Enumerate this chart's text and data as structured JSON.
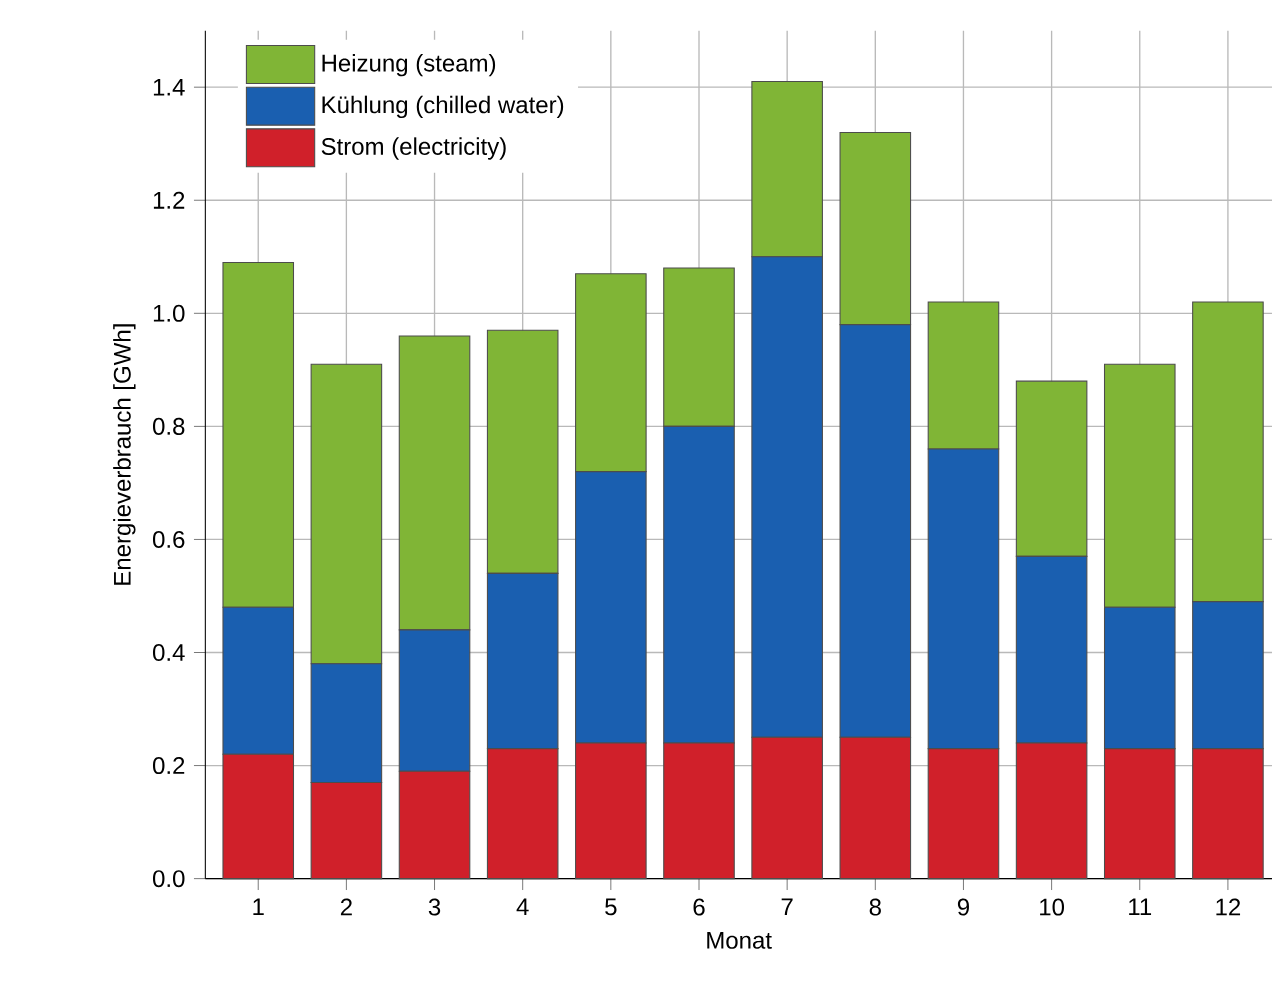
{
  "chart_data": {
    "type": "bar",
    "stacked": true,
    "xlabel": "Monat",
    "ylabel": "Energieverbrauch [GWh]",
    "categories": [
      "1",
      "2",
      "3",
      "4",
      "5",
      "6",
      "7",
      "8",
      "9",
      "10",
      "11",
      "12"
    ],
    "series": [
      {
        "name": "Strom (electricity)",
        "color": "#d0202a",
        "values": [
          0.22,
          0.17,
          0.19,
          0.23,
          0.24,
          0.24,
          0.25,
          0.25,
          0.23,
          0.24,
          0.23,
          0.23
        ]
      },
      {
        "name": "Kühlung (chilled water)",
        "color": "#1a5fb0",
        "values": [
          0.26,
          0.21,
          0.25,
          0.31,
          0.48,
          0.56,
          0.85,
          0.73,
          0.53,
          0.33,
          0.25,
          0.26
        ]
      },
      {
        "name": "Heizung (steam)",
        "color": "#80b536",
        "values": [
          0.61,
          0.53,
          0.52,
          0.43,
          0.35,
          0.28,
          0.31,
          0.34,
          0.26,
          0.31,
          0.43,
          0.53
        ]
      }
    ],
    "ylim": [
      0,
      1.5
    ],
    "yticks": [
      {
        "value": 0,
        "label": "0.0"
      },
      {
        "value": 0.2,
        "label": "0.2"
      },
      {
        "value": 0.4,
        "label": "0.4"
      },
      {
        "value": 0.6,
        "label": "0.6"
      },
      {
        "value": 0.8,
        "label": "0.8"
      },
      {
        "value": 1.0,
        "label": "1.0"
      },
      {
        "value": 1.2,
        "label": "1.2"
      },
      {
        "value": 1.4,
        "label": "1.4"
      }
    ],
    "grid": true,
    "legend": "top left"
  }
}
